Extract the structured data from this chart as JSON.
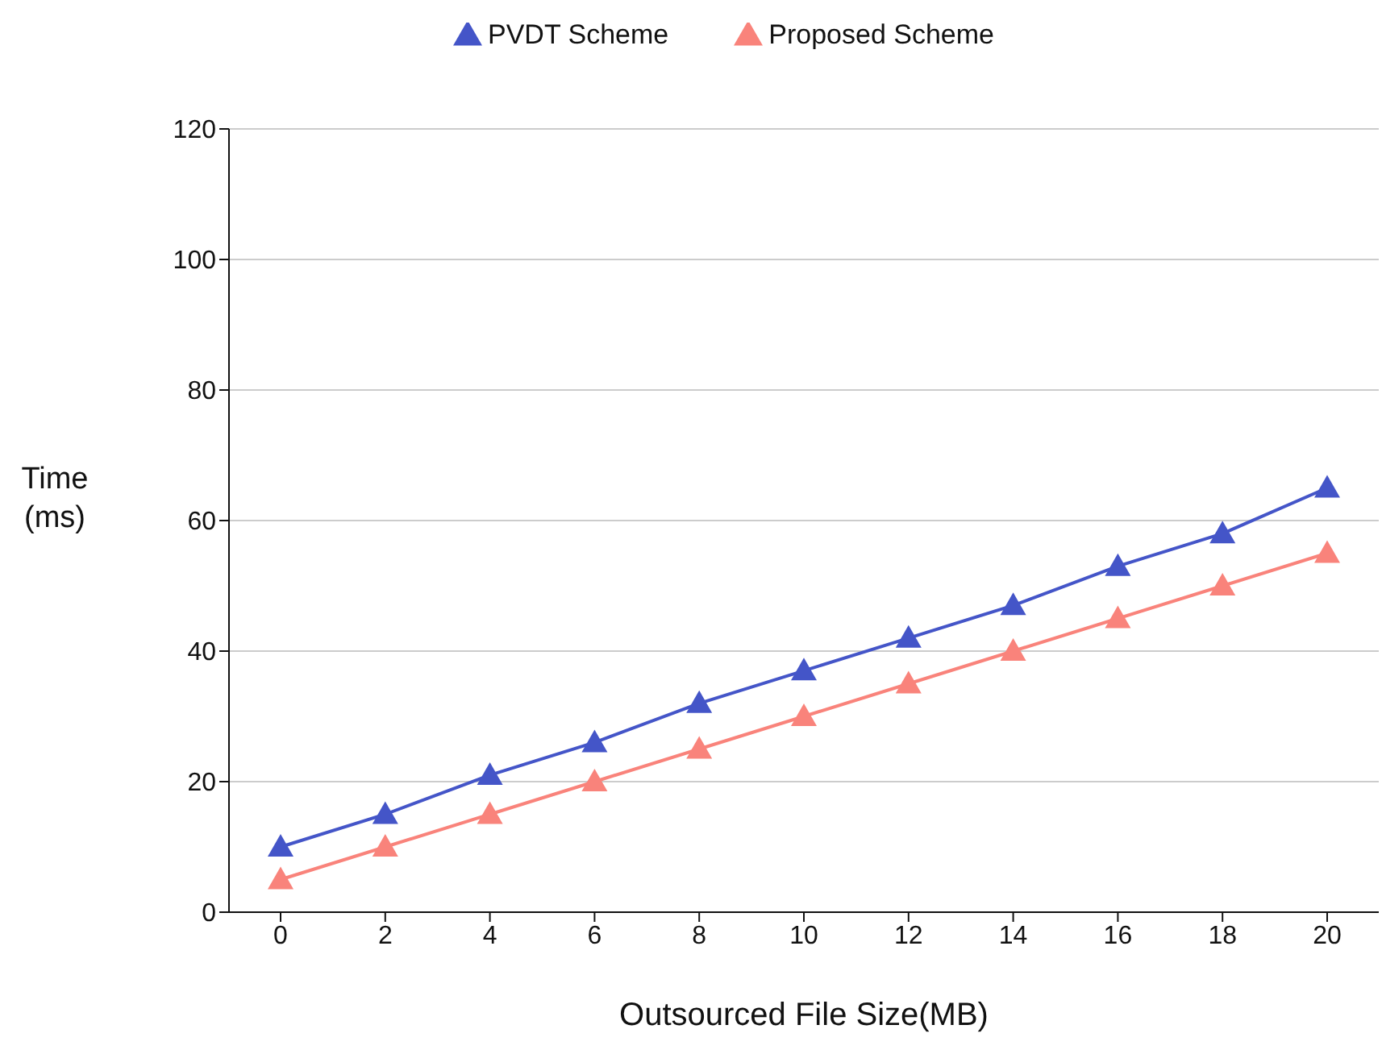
{
  "chart_data": {
    "type": "line",
    "xlabel": "Outsourced File Size(MB)",
    "ylabel": "Time (ms)",
    "categories": [
      "0",
      "2",
      "4",
      "6",
      "8",
      "10",
      "12",
      "14",
      "16",
      "18",
      "20"
    ],
    "series": [
      {
        "name": "PVDT Scheme",
        "color": "#4455c8",
        "values": [
          10,
          15,
          21,
          26,
          32,
          37,
          42,
          47,
          53,
          58,
          65
        ]
      },
      {
        "name": "Proposed Scheme",
        "color": "#f9837b",
        "values": [
          5,
          10,
          15,
          20,
          25,
          30,
          35,
          40,
          45,
          50,
          55
        ]
      }
    ],
    "ylim": [
      0,
      120
    ],
    "yticks": [
      0,
      20,
      40,
      60,
      80,
      100,
      120
    ],
    "grid": "y",
    "legend": "top",
    "marker": "triangle",
    "line_style": "solid"
  }
}
